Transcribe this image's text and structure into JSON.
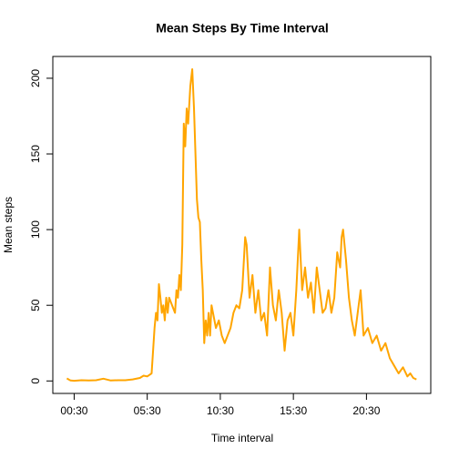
{
  "chart_data": {
    "type": "line",
    "title": "Mean Steps By Time Interval",
    "x_label": "Time interval",
    "y_label": "Mean steps",
    "x": [
      0,
      0.25,
      0.5,
      1,
      1.5,
      2,
      2.5,
      3,
      3.5,
      4,
      4.5,
      5,
      5.25,
      5.5,
      5.65,
      5.8,
      5.9,
      6.0,
      6.1,
      6.2,
      6.3,
      6.4,
      6.5,
      6.6,
      6.7,
      6.8,
      6.9,
      7.0,
      7.2,
      7.4,
      7.5,
      7.6,
      7.7,
      7.8,
      7.9,
      8.0,
      8.1,
      8.2,
      8.3,
      8.45,
      8.58,
      8.7,
      8.8,
      8.9,
      9.0,
      9.1,
      9.2,
      9.3,
      9.4,
      9.5,
      9.6,
      9.7,
      9.8,
      9.9,
      10.0,
      10.2,
      10.4,
      10.6,
      10.8,
      11.0,
      11.2,
      11.4,
      11.6,
      11.8,
      12.0,
      12.2,
      12.3,
      12.5,
      12.7,
      12.9,
      13.1,
      13.3,
      13.5,
      13.7,
      13.9,
      14.1,
      14.3,
      14.5,
      14.7,
      14.9,
      15.1,
      15.3,
      15.5,
      15.7,
      15.8,
      15.9,
      16.1,
      16.3,
      16.5,
      16.7,
      16.9,
      17.1,
      17.3,
      17.5,
      17.7,
      17.9,
      18.1,
      18.3,
      18.5,
      18.7,
      18.8,
      18.9,
      19.1,
      19.3,
      19.5,
      19.7,
      19.9,
      20.1,
      20.3,
      20.6,
      20.9,
      21.2,
      21.5,
      21.8,
      22.1,
      22.4,
      22.7,
      23.0,
      23.3,
      23.5,
      23.7,
      23.92
    ],
    "series": [
      {
        "name": "Mean steps",
        "color": "#ffa500",
        "values": [
          1.7,
          0.3,
          0.1,
          0.5,
          0.3,
          0.5,
          1.5,
          0.3,
          0.5,
          0.5,
          1,
          2,
          3.5,
          3,
          4,
          5,
          20,
          35,
          45,
          40,
          64,
          55,
          45,
          50,
          40,
          55,
          45,
          55,
          50,
          45,
          60,
          55,
          70,
          60,
          90,
          170,
          155,
          180,
          170,
          195,
          206,
          180,
          150,
          120,
          108,
          105,
          80,
          60,
          25,
          40,
          30,
          45,
          30,
          50,
          45,
          35,
          40,
          30,
          25,
          30,
          35,
          45,
          50,
          48,
          60,
          95,
          90,
          55,
          70,
          45,
          60,
          40,
          45,
          30,
          75,
          50,
          40,
          60,
          45,
          20,
          40,
          45,
          30,
          60,
          80,
          100,
          60,
          75,
          55,
          65,
          45,
          75,
          60,
          45,
          48,
          60,
          45,
          55,
          85,
          75,
          95,
          100,
          80,
          55,
          40,
          30,
          45,
          60,
          30,
          35,
          25,
          30,
          20,
          25,
          15,
          10,
          5,
          9,
          3,
          5,
          2,
          1
        ]
      }
    ],
    "xlim": [
      -0.96,
      24.9
    ],
    "ylim": [
      -8.24,
      214.4
    ],
    "xticks": [
      {
        "value": 0.5,
        "label": "00:30"
      },
      {
        "value": 5.5,
        "label": "05:30"
      },
      {
        "value": 10.5,
        "label": "10:30"
      },
      {
        "value": 15.5,
        "label": "15:30"
      },
      {
        "value": 20.5,
        "label": "20:30"
      }
    ],
    "yticks": [
      0,
      50,
      100,
      150,
      200
    ]
  }
}
